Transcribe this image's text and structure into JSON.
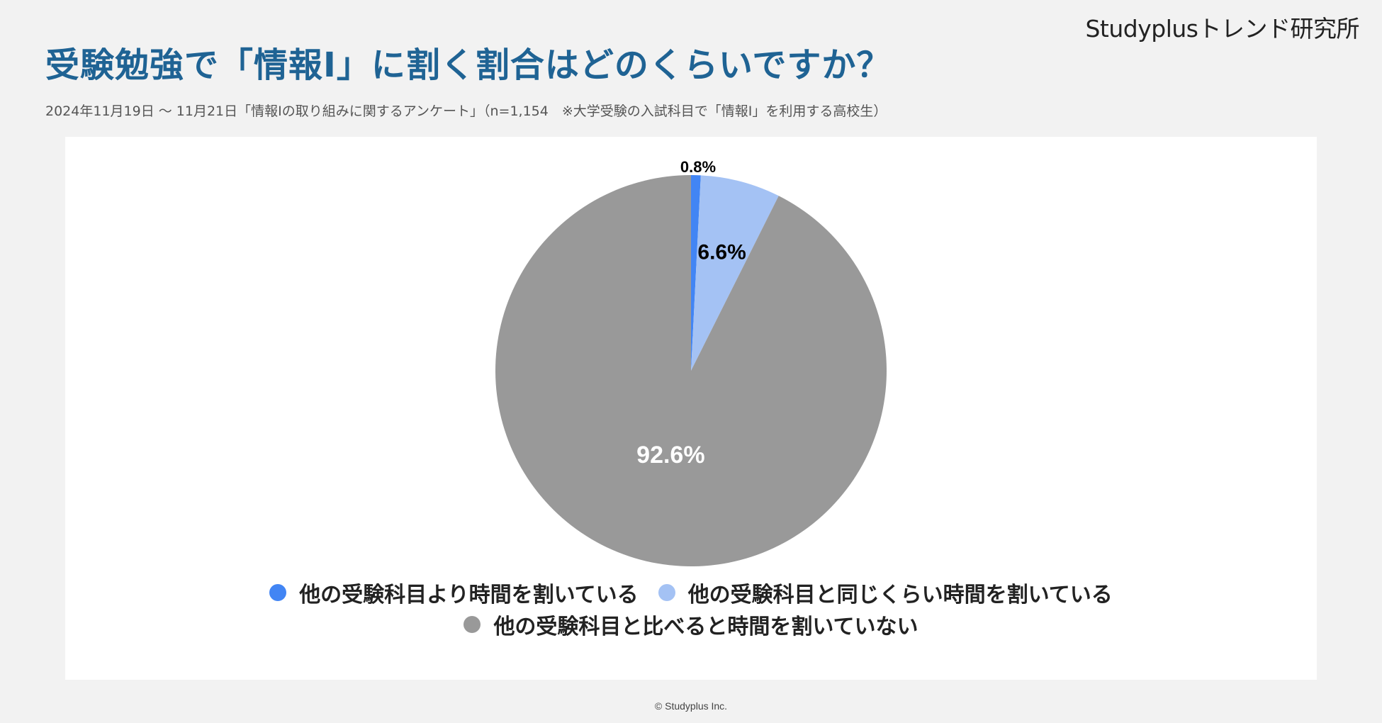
{
  "brand": "Studyplusトレンド研究所",
  "title": "受験勉強で「情報Ⅰ」に割く割合はどのくらいですか？",
  "subtitle": "2024年11月19日 〜 11月21日「情報Ⅰの取り組みに関するアンケート」（n=1,154　※大学受験の入試科目で「情報Ⅰ」を利用する高校生）",
  "footer": "© Studyplus Inc.",
  "chart_data": {
    "type": "pie",
    "slices": [
      {
        "label": "他の受験科目より時間を割いている",
        "value": 0.8,
        "display": "0.8%",
        "color": "#4285f4"
      },
      {
        "label": "他の受験科目と同じくらい時間を割いている",
        "value": 6.6,
        "display": "6.6%",
        "color": "#a4c2f4"
      },
      {
        "label": "他の受験科目と比べると時間を割いていない",
        "value": 92.6,
        "display": "92.6%",
        "color": "#999999"
      }
    ],
    "start_angle": "12 o'clock",
    "direction": "clockwise",
    "legend_position": "bottom"
  }
}
